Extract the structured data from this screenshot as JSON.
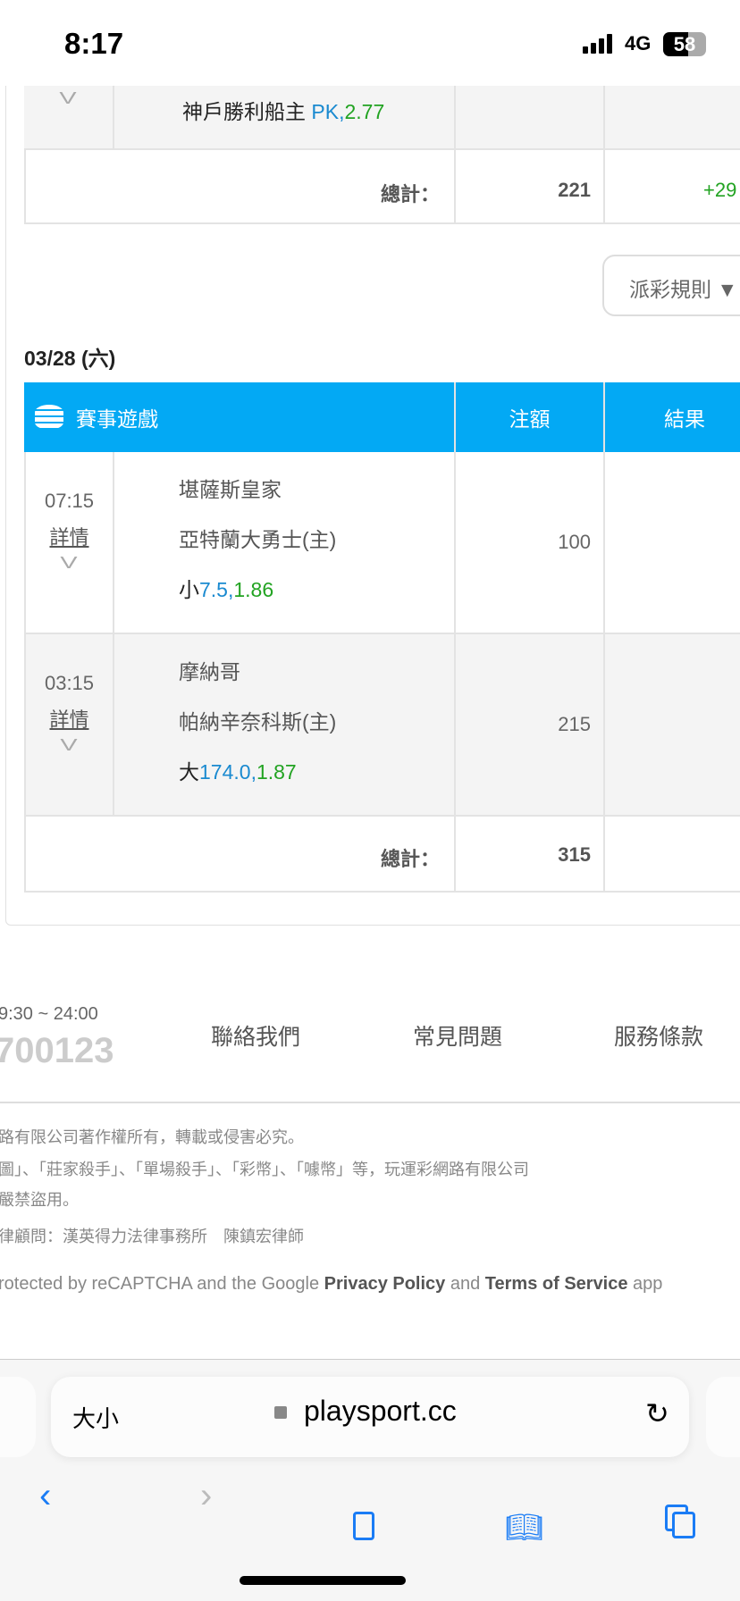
{
  "status_bar": {
    "time": "8:17",
    "network": "4G",
    "battery": "58"
  },
  "prev_section": {
    "row_team": "神戶勝利船主",
    "row_bet_type": "PK",
    "row_odds": "2.77",
    "total_label": "總計：",
    "total_amount": "221",
    "total_result": "+29"
  },
  "payout_rules_button": "派彩規則 ▼",
  "date": "03/28 (六)",
  "table": {
    "headers": {
      "game": "賽事遊戲",
      "amount": "注額",
      "result": "結果"
    },
    "rows": [
      {
        "time": "07:15",
        "detail": "詳情",
        "away": "堪薩斯皇家",
        "home": "亞特蘭大勇士(主)",
        "pick": "小",
        "line": "7.5",
        "odds": "1.86",
        "amount": "100"
      },
      {
        "time": "03:15",
        "detail": "詳情",
        "away": "摩納哥",
        "home": "帕納辛奈科斯(主)",
        "pick": "大",
        "line": "174.0",
        "odds": "1.87",
        "amount": "215"
      }
    ],
    "total_label": "總計：",
    "total_amount": "315"
  },
  "footer": {
    "hours": "9:30 ~ 24:00",
    "phone": "700123",
    "links": [
      "聯絡我們",
      "常見問題",
      "服務條款"
    ],
    "legal": [
      "路有限公司著作權所有，轉載或侵害必究。",
      "圖」、「莊家殺手」、「單場殺手」、「彩幣」、「噱幣」等，玩運彩網路有限公司",
      "嚴禁盜用。",
      "律顧問：漢英得力法律事務所　陳鎮宏律師"
    ],
    "recaptcha": {
      "pre": "rotected by reCAPTCHA and the Google ",
      "privacy": "Privacy Policy",
      "mid": " and ",
      "terms": "Terms of Service",
      "post": " app"
    }
  },
  "browser": {
    "text_size": "大小",
    "url": "playsport.cc"
  },
  "colors": {
    "header_blue": "#03a9f4",
    "line_blue": "#1a8ad0",
    "odds_green": "#22a322",
    "ios_blue": "#1a7cf5"
  }
}
